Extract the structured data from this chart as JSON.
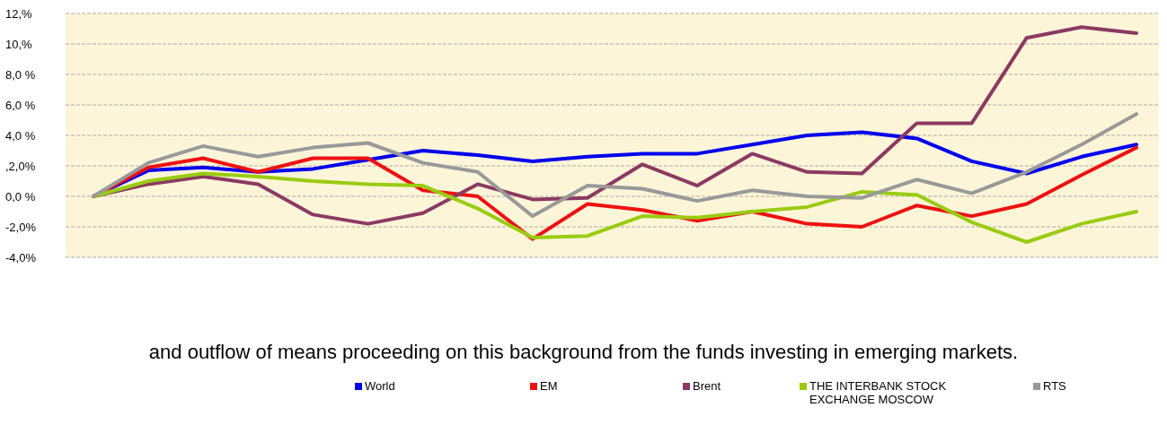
{
  "chart_data": {
    "type": "line",
    "categories": [
      null,
      null,
      null,
      null,
      null,
      null,
      null,
      null,
      null,
      null,
      null,
      null,
      null,
      null,
      null,
      null,
      null,
      null,
      null,
      null
    ],
    "ylim": [
      -4,
      12
    ],
    "yticks": [
      {
        "value": -4,
        "label": "-4,0%"
      },
      {
        "value": -2,
        "label": "-2,0%"
      },
      {
        "value": 0,
        "label": "0,0 %"
      },
      {
        "value": 2,
        "label": ",2,0%"
      },
      {
        "value": 4,
        "label": "4,0 %"
      },
      {
        "value": 6,
        "label": "6,0 %"
      },
      {
        "value": 8,
        "label": "8,0 %"
      },
      {
        "value": 10,
        "label": "10,%"
      },
      {
        "value": 12,
        "label": "12,%"
      }
    ],
    "grid": "y",
    "legend": "bottom",
    "tick_labels": "y",
    "annotations": [
      "and outflow of means proceeding on this background from the funds investing in emerging markets."
    ],
    "series": [
      {
        "name": "World",
        "color": "#0000ee",
        "values": [
          0,
          1.7,
          1.9,
          1.6,
          1.8,
          2.4,
          3.0,
          2.7,
          2.3,
          2.6,
          2.8,
          2.8,
          3.4,
          4.0,
          4.2,
          3.8,
          2.3,
          1.5,
          2.6,
          3.4
        ]
      },
      {
        "name": "EM",
        "color": "#ee1111",
        "values": [
          0,
          1.9,
          2.5,
          1.6,
          2.5,
          2.5,
          0.4,
          0.0,
          -2.8,
          -0.5,
          -0.9,
          -1.6,
          -1.0,
          -1.8,
          -2.0,
          -0.6,
          -1.3,
          -0.5,
          1.4,
          3.2
        ]
      },
      {
        "name": "Brent",
        "color": "#8b3a62",
        "values": [
          0,
          0.8,
          1.3,
          0.8,
          -1.2,
          -1.8,
          -1.1,
          0.8,
          -0.2,
          -0.1,
          2.1,
          0.7,
          2.8,
          1.6,
          1.5,
          4.8,
          4.8,
          10.4,
          11.1,
          10.7
        ]
      },
      {
        "name": "THE INTERBANK STOCK EXCHANGE MOSCOW",
        "color": "#99cc11",
        "values": [
          0,
          1.0,
          1.5,
          1.3,
          1.0,
          0.8,
          0.7,
          -0.8,
          -2.7,
          -2.6,
          -1.3,
          -1.4,
          -1.0,
          -0.7,
          0.3,
          0.1,
          -1.7,
          -3.0,
          -1.8,
          -1.0
        ]
      },
      {
        "name": "RTS",
        "color": "#999999",
        "values": [
          0,
          2.2,
          3.3,
          2.6,
          3.2,
          3.5,
          2.2,
          1.6,
          -1.3,
          0.7,
          0.5,
          -0.3,
          0.4,
          0.0,
          -0.1,
          1.1,
          0.2,
          1.6,
          3.4,
          5.4
        ]
      }
    ]
  }
}
